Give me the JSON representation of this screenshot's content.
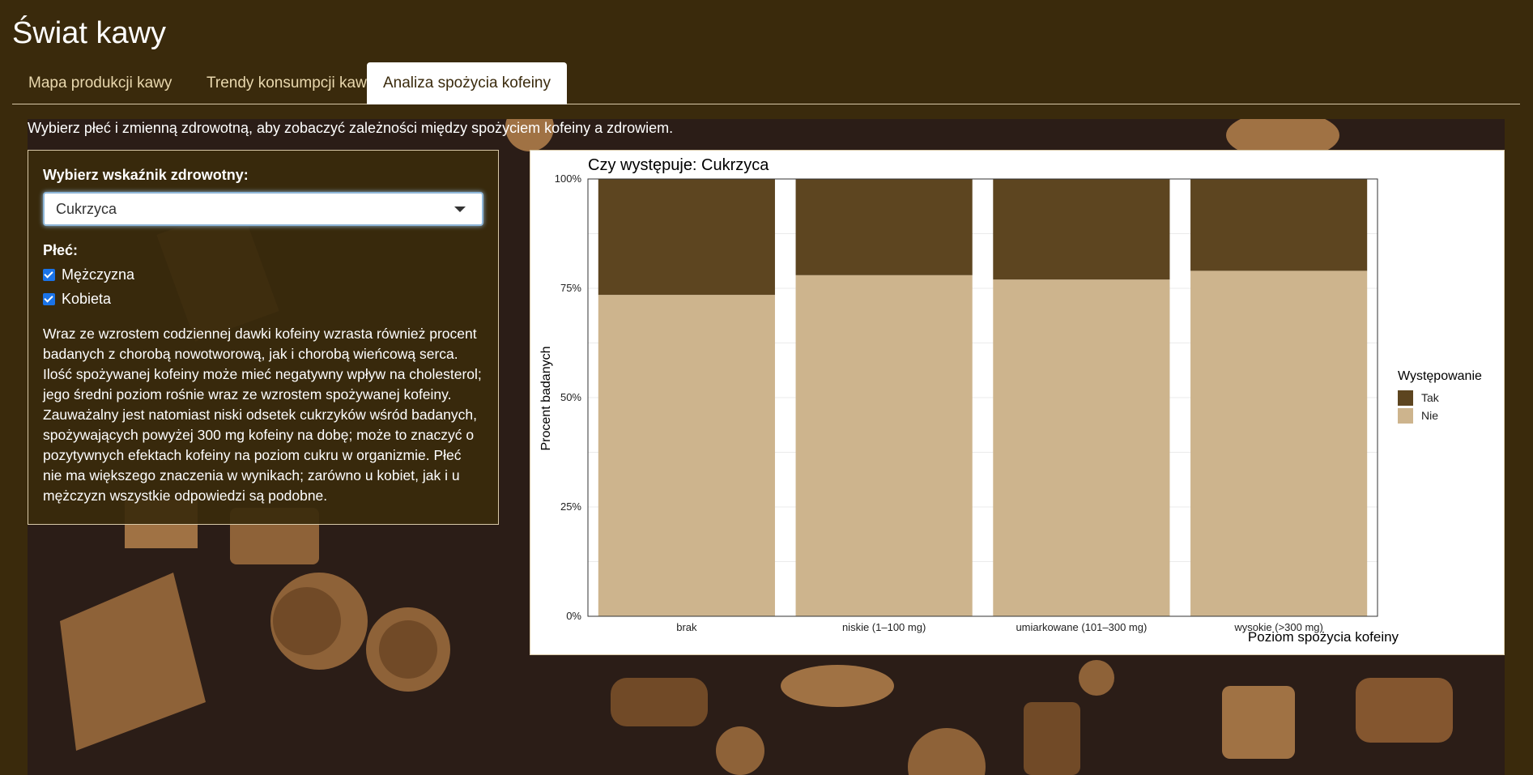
{
  "app": {
    "title": "Świat kawy"
  },
  "tabs": [
    {
      "label": "Mapa produkcji kawy",
      "active": false
    },
    {
      "label": "Trendy konsumpcji kawy",
      "active": false
    },
    {
      "label": "Analiza spożycia kofeiny",
      "active": true
    }
  ],
  "intro": "Wybierz płeć i zmienną zdrowotną, aby zobaczyć zależności między spożyciem kofeiny a zdrowiem.",
  "sidebar": {
    "indicator_label": "Wybierz wskaźnik zdrowotny:",
    "indicator_value": "Cukrzyca",
    "gender_label": "Płeć:",
    "genders": [
      {
        "label": "Mężczyzna",
        "checked": true
      },
      {
        "label": "Kobieta",
        "checked": true
      }
    ],
    "description": "Wraz ze wzrostem codziennej dawki kofeiny wzrasta również procent badanych z chorobą nowotworową, jak i chorobą wieńcową serca. Ilość spożywanej kofeiny może mieć negatywny wpływ na cholesterol; jego średni poziom rośnie wraz ze wzrostem spożywanej kofeiny. Zauważalny jest natomiast niski odsetek cukrzyków wśród badanych, spożywających powyżej 300 mg kofeiny na dobę; może to znaczyć o pozytywnych efektach kofeiny na poziom cukru w organizmie. Płeć nie ma większego znaczenia w wynikach; zarówno u kobiet, jak i u mężczyzn wszystkie odpowiedzi są podobne."
  },
  "colors": {
    "background": "#3a2a0c",
    "tab_text": "#e9d8ae",
    "tak": "#5d4520",
    "nie": "#cdb48d"
  },
  "chart_data": {
    "type": "bar",
    "stacked": true,
    "title": "Czy występuje: Cukrzyca",
    "xlabel": "Poziom spożycia kofeiny",
    "ylabel": "Procent badanych",
    "categories": [
      "brak",
      "niskie (1–100 mg)",
      "umiarkowane (101–300 mg)",
      "wysokie (>300 mg)"
    ],
    "series": [
      {
        "name": "Nie",
        "values": [
          73.5,
          78,
          77,
          79
        ],
        "color": "#cdb48d"
      },
      {
        "name": "Tak",
        "values": [
          26.5,
          22,
          23,
          21
        ],
        "color": "#5d4520"
      }
    ],
    "ylim": [
      0,
      100
    ],
    "yticks": [
      "0%",
      "25%",
      "50%",
      "75%",
      "100%"
    ],
    "legend_title": "Występowanie",
    "legend_entries": [
      "Tak",
      "Nie"
    ],
    "legend_position": "right",
    "grid": true
  }
}
